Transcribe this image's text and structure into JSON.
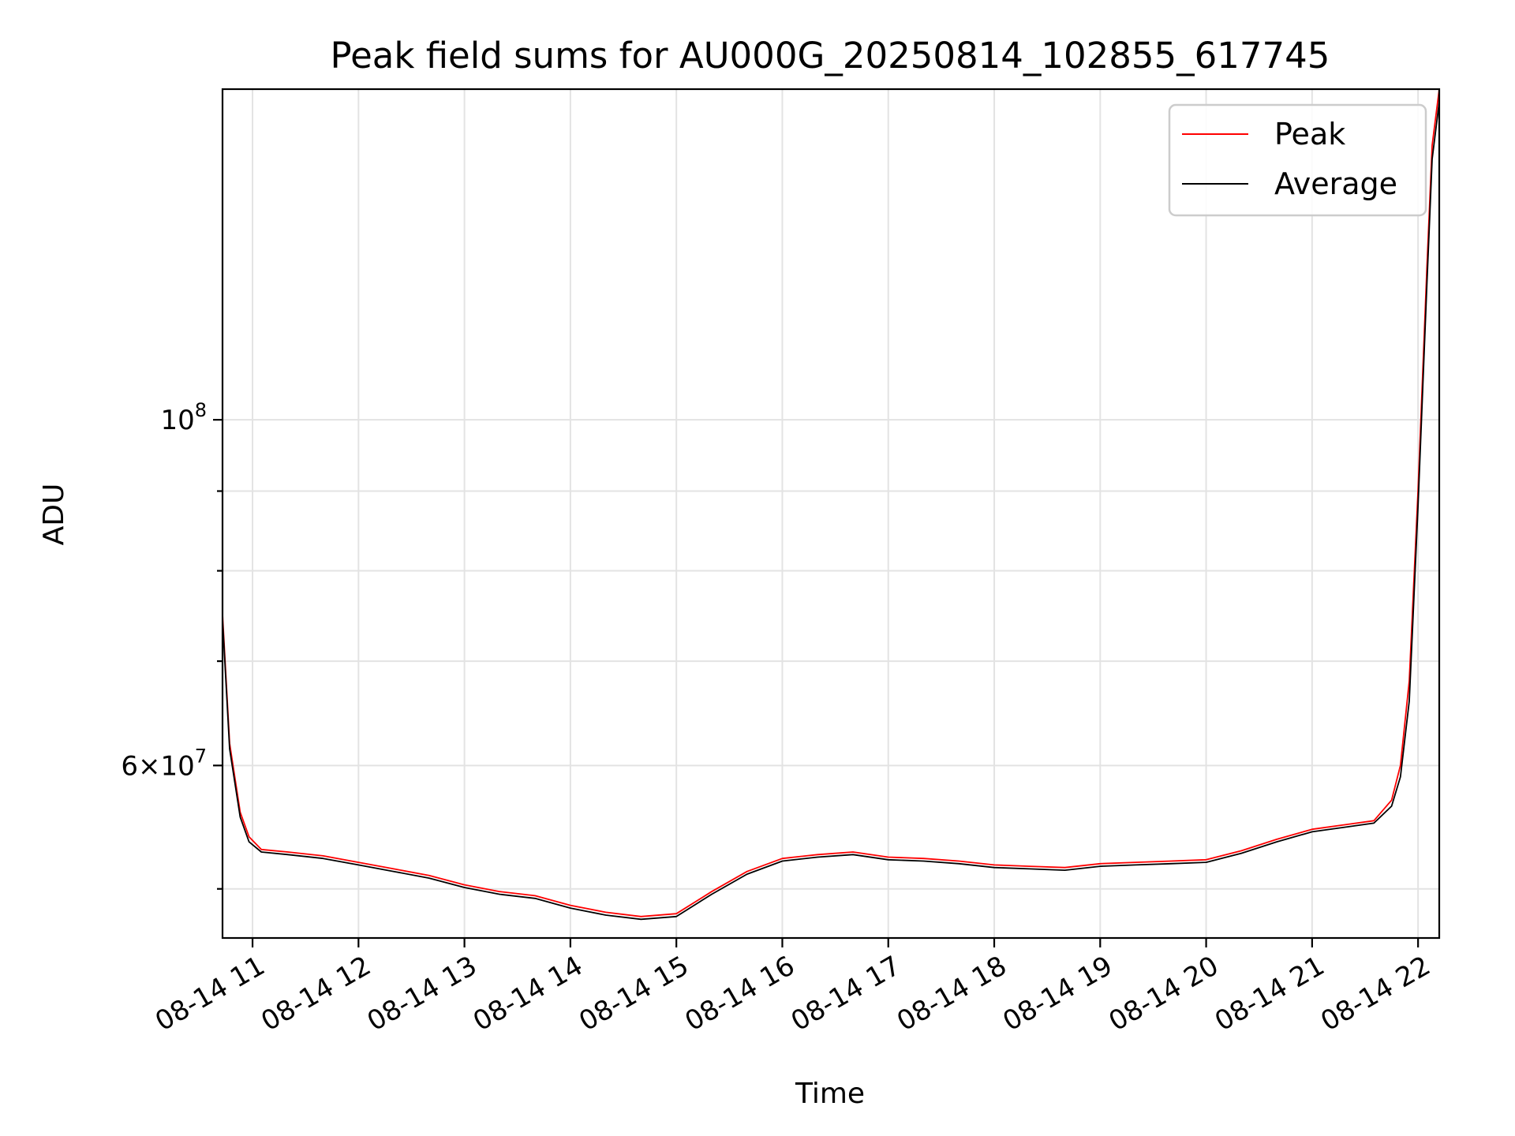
{
  "chart_data": {
    "type": "line",
    "title": "Peak field sums for AU000G_20250814_102855_617745",
    "xlabel": "Time",
    "ylabel": "ADU",
    "y_scale": "log",
    "xlim": [
      "2025-08-14 10:43",
      "2025-08-14 22:12"
    ],
    "ylim": [
      46500000,
      163000000
    ],
    "x_ticks": [
      "08-14 11",
      "08-14 12",
      "08-14 13",
      "08-14 14",
      "08-14 15",
      "08-14 16",
      "08-14 17",
      "08-14 18",
      "08-14 19",
      "08-14 20",
      "08-14 21",
      "08-14 22"
    ],
    "y_major_ticks": [
      {
        "value": 100000000,
        "mantissa": "",
        "base": "10",
        "exp": "8"
      },
      {
        "value": 60000000,
        "mantissa": "6×",
        "base": "10",
        "exp": "7"
      }
    ],
    "y_minor_ticks": [
      50000000,
      70000000,
      80000000,
      90000000
    ],
    "grid": true,
    "legend_position": "upper right",
    "colors": {
      "peak": "#ff0000",
      "average": "#000000"
    },
    "series": [
      {
        "name": "Peak",
        "x": [
          "2025-08-14 10:43",
          "2025-08-14 10:47",
          "2025-08-14 10:53",
          "2025-08-14 10:58",
          "2025-08-14 11:05",
          "2025-08-14 11:20",
          "2025-08-14 11:40",
          "2025-08-14 12:00",
          "2025-08-14 12:20",
          "2025-08-14 12:40",
          "2025-08-14 13:00",
          "2025-08-14 13:20",
          "2025-08-14 13:40",
          "2025-08-14 14:00",
          "2025-08-14 14:20",
          "2025-08-14 14:40",
          "2025-08-14 15:00",
          "2025-08-14 15:20",
          "2025-08-14 15:40",
          "2025-08-14 16:00",
          "2025-08-14 16:20",
          "2025-08-14 16:40",
          "2025-08-14 17:00",
          "2025-08-14 17:20",
          "2025-08-14 17:40",
          "2025-08-14 18:00",
          "2025-08-14 18:20",
          "2025-08-14 18:40",
          "2025-08-14 19:00",
          "2025-08-14 19:20",
          "2025-08-14 19:40",
          "2025-08-14 20:00",
          "2025-08-14 20:20",
          "2025-08-14 20:40",
          "2025-08-14 21:00",
          "2025-08-14 21:20",
          "2025-08-14 21:35",
          "2025-08-14 21:45",
          "2025-08-14 21:50",
          "2025-08-14 21:55",
          "2025-08-14 22:00",
          "2025-08-14 22:05",
          "2025-08-14 22:08",
          "2025-08-14 22:12"
        ],
        "values": [
          75000000,
          62000000,
          56000000,
          54000000,
          53000000,
          52800000,
          52500000,
          52000000,
          51500000,
          51000000,
          50300000,
          49800000,
          49500000,
          48800000,
          48300000,
          48000000,
          48200000,
          49800000,
          51300000,
          52300000,
          52600000,
          52800000,
          52400000,
          52300000,
          52100000,
          51800000,
          51700000,
          51600000,
          51900000,
          52000000,
          52100000,
          52200000,
          52900000,
          53800000,
          54600000,
          55000000,
          55300000,
          57000000,
          60000000,
          68000000,
          90000000,
          125000000,
          150000000,
          163000000
        ]
      },
      {
        "name": "Average",
        "x": [
          "2025-08-14 10:43",
          "2025-08-14 10:47",
          "2025-08-14 10:53",
          "2025-08-14 10:58",
          "2025-08-14 11:05",
          "2025-08-14 11:20",
          "2025-08-14 11:40",
          "2025-08-14 12:00",
          "2025-08-14 12:20",
          "2025-08-14 12:40",
          "2025-08-14 13:00",
          "2025-08-14 13:20",
          "2025-08-14 13:40",
          "2025-08-14 14:00",
          "2025-08-14 14:20",
          "2025-08-14 14:40",
          "2025-08-14 15:00",
          "2025-08-14 15:20",
          "2025-08-14 15:40",
          "2025-08-14 16:00",
          "2025-08-14 16:20",
          "2025-08-14 16:40",
          "2025-08-14 17:00",
          "2025-08-14 17:20",
          "2025-08-14 17:40",
          "2025-08-14 18:00",
          "2025-08-14 18:20",
          "2025-08-14 18:40",
          "2025-08-14 19:00",
          "2025-08-14 19:20",
          "2025-08-14 19:40",
          "2025-08-14 20:00",
          "2025-08-14 20:20",
          "2025-08-14 20:40",
          "2025-08-14 21:00",
          "2025-08-14 21:20",
          "2025-08-14 21:35",
          "2025-08-14 21:45",
          "2025-08-14 21:50",
          "2025-08-14 21:55",
          "2025-08-14 22:00",
          "2025-08-14 22:05",
          "2025-08-14 22:08",
          "2025-08-14 22:12"
        ],
        "values": [
          74500000,
          61500000,
          55600000,
          53600000,
          52800000,
          52600000,
          52300000,
          51800000,
          51300000,
          50800000,
          50100000,
          49600000,
          49300000,
          48600000,
          48100000,
          47800000,
          48000000,
          49600000,
          51100000,
          52100000,
          52400000,
          52600000,
          52200000,
          52100000,
          51900000,
          51600000,
          51500000,
          51400000,
          51700000,
          51800000,
          51900000,
          52000000,
          52700000,
          53600000,
          54400000,
          54800000,
          55100000,
          56500000,
          59000000,
          66000000,
          88000000,
          122000000,
          147000000,
          160000000
        ]
      }
    ]
  }
}
